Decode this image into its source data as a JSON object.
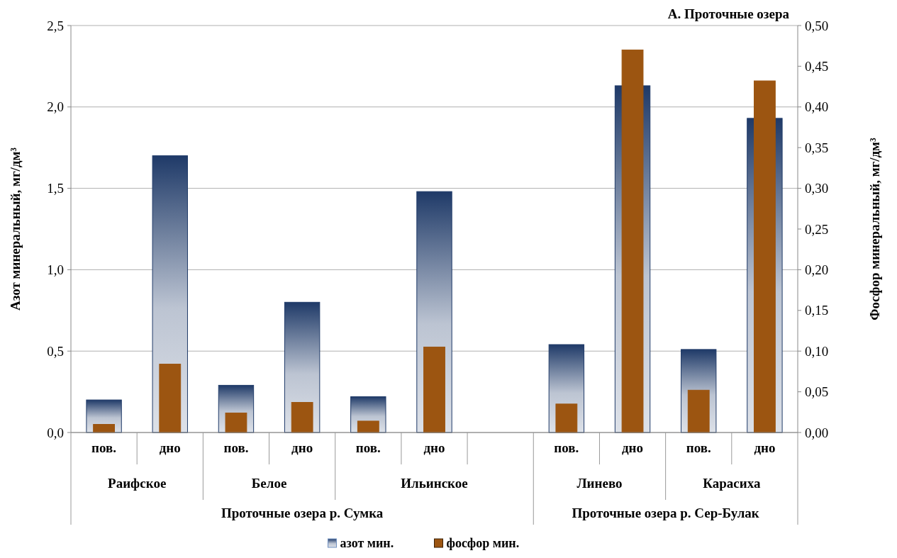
{
  "chart_data": {
    "type": "bar",
    "title": "А. Проточные озера",
    "ylabel": "Азот  минеральный, мг/дм³",
    "y2label": "Фосфор минеральный, мг/дм³",
    "categories": [
      "пов.",
      "дно",
      "пов.",
      "дно",
      "пов.",
      "дно",
      null,
      "пов.",
      "дно",
      "пов.",
      "дно"
    ],
    "series": [
      {
        "name": "азот мин.",
        "color": "#1f3a68",
        "values": [
          0.2,
          1.7,
          0.29,
          0.8,
          0.22,
          1.48,
          null,
          0.54,
          2.13,
          0.51,
          1.93
        ]
      },
      {
        "name": "фосфор мин.",
        "color": "#9c5511",
        "axis": "y2",
        "values": [
          0.01,
          0.084,
          0.024,
          0.037,
          0.014,
          0.105,
          null,
          0.035,
          0.47,
          0.052,
          0.432
        ]
      }
    ],
    "ylim": [
      0,
      2.5
    ],
    "yticks": [
      {
        "value": 0,
        "label": "0,0"
      },
      {
        "value": 0.5,
        "label": "0,5"
      },
      {
        "value": 1,
        "label": "1,0"
      },
      {
        "value": 1.5,
        "label": "1,5"
      },
      {
        "value": 2,
        "label": "2,0"
      },
      {
        "value": 2.5,
        "label": "2,5"
      }
    ],
    "y2lim": [
      0,
      0.5
    ],
    "y2ticks": [
      {
        "value": 0,
        "label": "0,00"
      },
      {
        "value": 0.05,
        "label": "0,05"
      },
      {
        "value": 0.1,
        "label": "0,10"
      },
      {
        "value": 0.15,
        "label": "0,15"
      },
      {
        "value": 0.2,
        "label": "0,20"
      },
      {
        "value": 0.25,
        "label": "0,25"
      },
      {
        "value": 0.3,
        "label": "0,30"
      },
      {
        "value": 0.35,
        "label": "0,35"
      },
      {
        "value": 0.4,
        "label": "0,40"
      },
      {
        "value": 0.45,
        "label": "0,45"
      },
      {
        "value": 0.5,
        "label": "0,50"
      }
    ],
    "grid": "y",
    "legend": "bottom",
    "annotations": [
      "Раифское",
      "Белое",
      "Ильинское",
      "Линево",
      "Карасиха",
      "Проточные озера р. Сумка",
      "Проточные озера р. Сер-Булак"
    ]
  }
}
